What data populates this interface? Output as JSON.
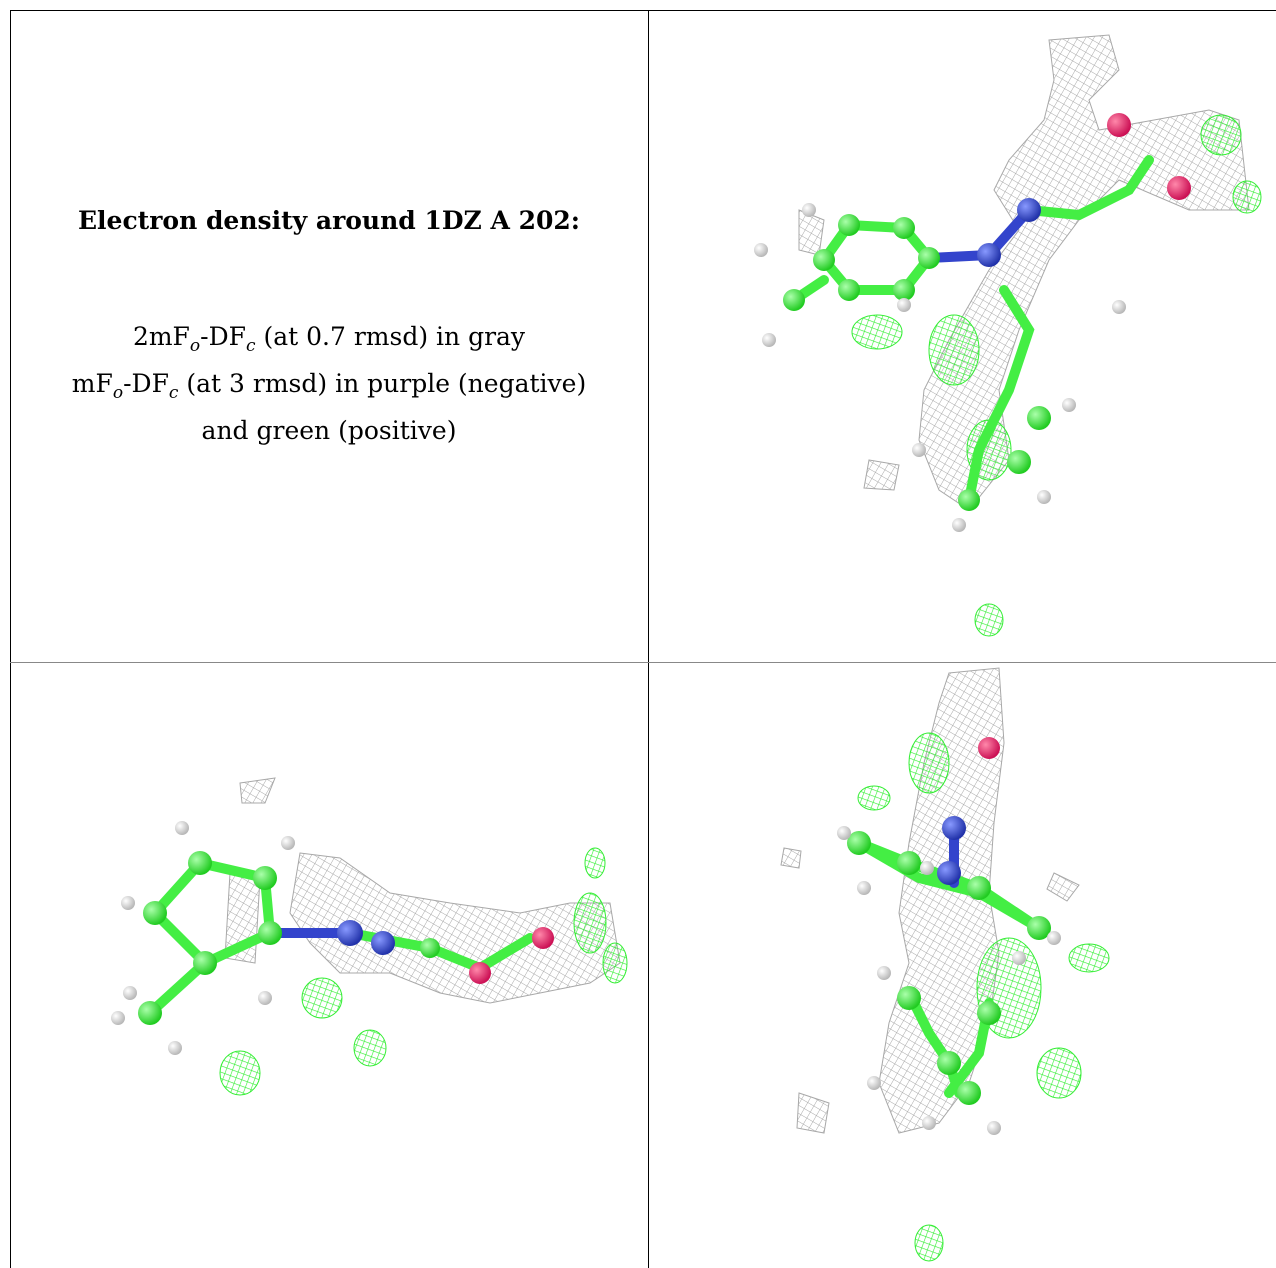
{
  "caption": {
    "title": "Electron density around 1DZ A 202:",
    "line1": {
      "t1": "2mF",
      "s1": "o",
      "t2": "-DF",
      "s2": "c",
      "t3": " (at 0.7 rmsd) in gray"
    },
    "line2": {
      "t1": "mF",
      "s1": "o",
      "t2": "-DF",
      "s2": "c",
      "t3": " (at 3 rmsd) in purple (negative)"
    },
    "line3": "and green (positive)"
  },
  "colors": {
    "mesh_2fofc": "#a8a8a8",
    "mesh_positive": "#33ee33",
    "carbon": "#44ee44",
    "nitrogen": "#3344cc",
    "oxygen": "#ee2266",
    "hydrogen": "#e6e6e6"
  }
}
